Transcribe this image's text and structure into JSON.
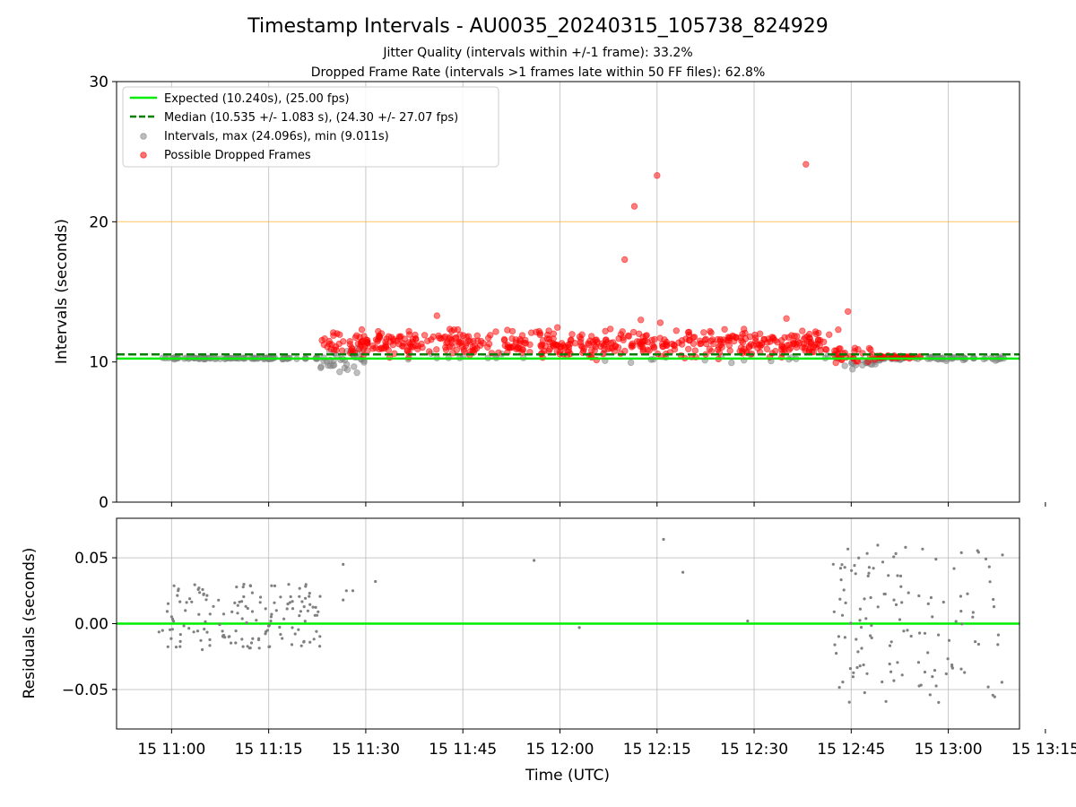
{
  "chart_data": [
    {
      "type": "scatter",
      "title": "Timestamp Intervals - AU0035_20240315_105738_824929",
      "subtitle_lines": [
        "Jitter Quality (intervals within +/-1 frame): 33.2%",
        "Dropped Frame Rate (intervals >1 frames late within 50 FF files): 62.8%"
      ],
      "xlabel": "",
      "ylabel": "Intervals (seconds)",
      "ylim": [
        0,
        30
      ],
      "yticks": [
        0,
        10,
        20,
        30
      ],
      "xlim_minutes": [
        -8.5,
        131
      ],
      "xticks_minutes": [
        0,
        15,
        30,
        45,
        60,
        75,
        90,
        105,
        120,
        135
      ],
      "xtick_labels": [
        "15 11:00",
        "15 11:15",
        "15 11:30",
        "15 11:45",
        "15 12:00",
        "15 12:15",
        "15 12:30",
        "15 12:45",
        "15 13:00",
        "15 13:15"
      ],
      "grid": "vertical",
      "expected_line": {
        "value": 10.24,
        "color": "#00ee00"
      },
      "median_line": {
        "value": 10.535,
        "color": "#007f00"
      },
      "threshold_line": {
        "value": 20,
        "color": "#ffa500"
      },
      "legend_position": "upper-left",
      "legend": [
        "Expected (10.240s), (25.00 fps)",
        "Median (10.535 +/- 1.083 s), (24.30 +/- 27.07 fps)",
        "Intervals, max (24.096s), min (9.011s)",
        "Possible Dropped Frames"
      ],
      "series": [
        {
          "name": "Intervals, max (24.096s), min (9.011s)",
          "color": "#808080",
          "segments": [
            {
              "x_from": -2,
              "x_to": 23,
              "count": 95,
              "y_center": 10.26,
              "y_spread": 0.06
            },
            {
              "x_from": 23,
              "x_to": 30,
              "count": 35,
              "y_center": 10.15,
              "y_spread": 0.9
            },
            {
              "x_from": 30,
              "x_to": 104,
              "count": 30,
              "y_center": 10.25,
              "y_spread": 0.35
            },
            {
              "x_from": 104,
              "x_to": 109,
              "count": 18,
              "y_center": 9.9,
              "y_spread": 0.35
            },
            {
              "x_from": 109,
              "x_to": 129,
              "count": 70,
              "y_center": 10.27,
              "y_spread": 0.15
            }
          ]
        },
        {
          "name": "Possible Dropped Frames",
          "color": "#ff0000",
          "segments": [
            {
              "x_from": 23,
              "x_to": 102,
              "count": 520,
              "y_center": 11.3,
              "y_spread": 0.9
            },
            {
              "x_from": 102,
              "x_to": 109,
              "count": 30,
              "y_center": 10.5,
              "y_spread": 0.6
            },
            {
              "x_from": 109,
              "x_to": 116,
              "count": 35,
              "y_center": 10.35,
              "y_spread": 0.1
            }
          ],
          "outliers": [
            {
              "x": 70,
              "y": 17.3
            },
            {
              "x": 71.5,
              "y": 21.1
            },
            {
              "x": 75,
              "y": 23.3
            },
            {
              "x": 98,
              "y": 24.1
            },
            {
              "x": 104.5,
              "y": 13.6
            },
            {
              "x": 41,
              "y": 13.3
            },
            {
              "x": 72.5,
              "y": 13.0
            },
            {
              "x": 75.5,
              "y": 12.8
            },
            {
              "x": 95,
              "y": 13.1
            },
            {
              "x": 103,
              "y": 12.3
            }
          ]
        }
      ]
    },
    {
      "type": "scatter",
      "xlabel": "Time (UTC)",
      "ylabel": "Residuals (seconds)",
      "ylim": [
        -0.08,
        0.08
      ],
      "yticks": [
        0.05,
        0.0,
        -0.05
      ],
      "ytick_labels": [
        "0.05",
        "0.00",
        "−0.05"
      ],
      "zero_line": {
        "value": 0,
        "color": "#00ee00"
      },
      "grid": "both",
      "series": [
        {
          "name": "",
          "color": "#808080",
          "clusters": [
            {
              "x_from": -2,
              "x_to": 23,
              "count": 150,
              "y_center": 0.005,
              "y_spread": 0.025
            },
            {
              "x_from": 102,
              "x_to": 129,
              "count": 130,
              "y_center": 0.0,
              "y_spread": 0.06
            }
          ],
          "points": [
            {
              "x": 26.5,
              "y": 0.045
            },
            {
              "x": 27,
              "y": 0.025
            },
            {
              "x": 28,
              "y": 0.025
            },
            {
              "x": 26.5,
              "y": 0.018
            },
            {
              "x": 31.5,
              "y": 0.032
            },
            {
              "x": 56,
              "y": 0.048
            },
            {
              "x": 63,
              "y": -0.003
            },
            {
              "x": 76,
              "y": 0.064
            },
            {
              "x": 79,
              "y": 0.039
            },
            {
              "x": 89,
              "y": 0.002
            }
          ]
        }
      ]
    }
  ]
}
